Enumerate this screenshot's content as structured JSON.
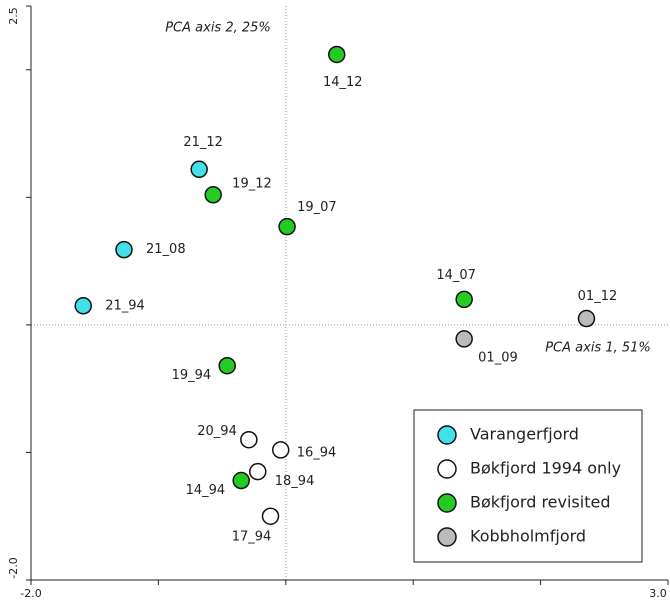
{
  "chart_data": {
    "type": "scatter",
    "x_axis_title": "PCA axis 1, 51%",
    "y_axis_title": "PCA axis 2, 25%",
    "xlim": [
      -2,
      3
    ],
    "ylim": [
      -2,
      2.5
    ],
    "xticks": [
      {
        "value": -2,
        "label": "-2.0"
      },
      {
        "value": -1,
        "label": null
      },
      {
        "value": 0,
        "label": null
      },
      {
        "value": 1,
        "label": null
      },
      {
        "value": 2,
        "label": null
      },
      {
        "value": 3,
        "label": "3.0"
      }
    ],
    "yticks": [
      {
        "value": -2,
        "label": "-2.0"
      },
      {
        "value": -1,
        "label": null
      },
      {
        "value": 0,
        "label": null
      },
      {
        "value": 1,
        "label": null
      },
      {
        "value": 2,
        "label": null
      },
      {
        "value": 2.5,
        "label": "2.5"
      }
    ],
    "legend_position": "lower right",
    "series": [
      {
        "name": "Varangerfjord",
        "color": "#44e0ea",
        "labels": [
          "21_12",
          "21_08",
          "21_94"
        ],
        "x": [
          -0.68,
          -1.27,
          -1.59
        ],
        "values": [
          1.22,
          0.59,
          0.15
        ]
      },
      {
        "name": "Bøkfjord 1994 only",
        "color": "#ffffff",
        "labels": [
          "20_94",
          "16_94",
          "18_94",
          "17_94"
        ],
        "x": [
          -0.29,
          -0.04,
          -0.22,
          -0.12
        ],
        "values": [
          -0.9,
          -0.98,
          -1.15,
          -1.5
        ]
      },
      {
        "name": "Bøkfjord revisited",
        "color": "#22cc22",
        "labels": [
          "14_12",
          "19_12",
          "19_07",
          "14_07",
          "19_94",
          "14_94"
        ],
        "x": [
          0.4,
          -0.57,
          0.01,
          1.4,
          -0.46,
          -0.35
        ],
        "values": [
          2.12,
          1.02,
          0.77,
          0.2,
          -0.32,
          -1.22
        ]
      },
      {
        "name": "Kobbholmfjord",
        "color": "#bbbbbb",
        "labels": [
          "01_12",
          "01_09"
        ],
        "x": [
          2.36,
          1.4
        ],
        "values": [
          0.05,
          -0.11
        ]
      }
    ]
  }
}
